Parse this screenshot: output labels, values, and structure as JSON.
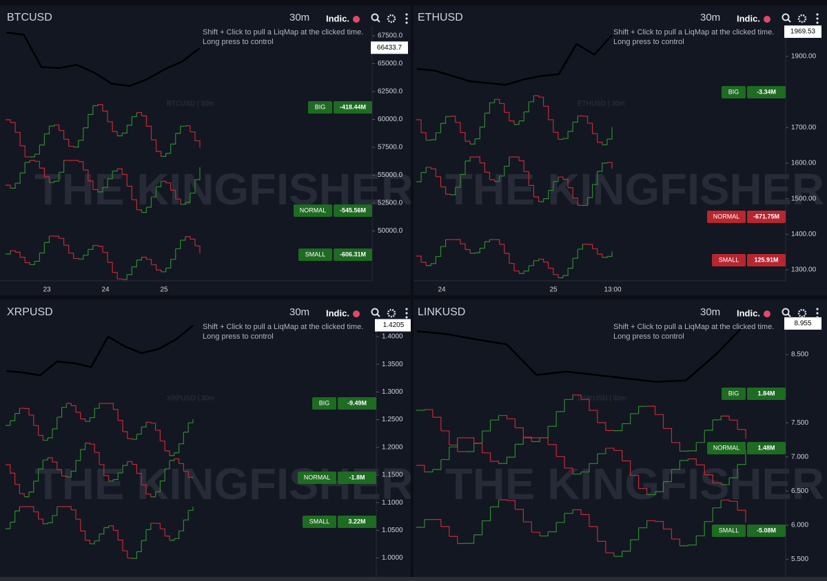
{
  "panels": [
    {
      "symbol": "BTCUSD",
      "timeframe": "30m",
      "indicator": "Indic.",
      "hint": [
        "Shift + Click to pull a LiqMap at the clicked time.",
        "Long press to control"
      ],
      "watermark": "THE KINGFISHER",
      "series_label": "BTCUSD | 30m",
      "price": {
        "values": [
          67800,
          67600,
          64700,
          64600,
          64900,
          64200,
          63200,
          63000,
          63600,
          64500,
          65200,
          66400
        ],
        "color": "#000000"
      },
      "price_label": "66433.7",
      "price_value": 66433.7,
      "ylim": [
        45525,
        68364
      ],
      "yticks": [
        {
          "value": 67500,
          "label": "67500.0"
        },
        {
          "value": 65000,
          "label": "65000.0"
        },
        {
          "value": 62500,
          "label": "62500.0"
        },
        {
          "value": 60000,
          "label": "60000.0"
        },
        {
          "value": 57500,
          "label": "57500.0"
        },
        {
          "value": 55000,
          "label": "55000.0"
        },
        {
          "value": 52500,
          "label": "52500.0"
        },
        {
          "value": 50000,
          "label": "50000.0"
        }
      ],
      "x_labels": [
        "23",
        "24",
        "25"
      ],
      "levels": [
        {
          "name": "BIG",
          "value": "-418.44M",
          "color": "#1e6b22"
        },
        {
          "name": "NORMAL",
          "value": "-545.56M",
          "color": "#1e6b22"
        },
        {
          "name": "SMALL",
          "value": "-606.31M",
          "color": "#1e6b22"
        }
      ]
    },
    {
      "symbol": "ETHUSD",
      "timeframe": "30m",
      "indicator": "Indic.",
      "hint": [
        "Shift + Click to pull a LiqMap at the clicked time.",
        "Long press to control"
      ],
      "watermark": "THE KINGFISHER",
      "series_label": "ETHUSD | 30m",
      "price": {
        "values": [
          1865,
          1860,
          1845,
          1830,
          1825,
          1820,
          1835,
          1845,
          1850,
          1935,
          1905,
          1960
        ],
        "color": "#000000"
      },
      "price_label": "1969.53",
      "price_value": 1969.53,
      "ylim": [
        1269,
        1985
      ],
      "yticks": [
        {
          "value": 1900,
          "label": "1900.00"
        },
        {
          "value": 1700,
          "label": "1700.00"
        },
        {
          "value": 1600,
          "label": "1600.00"
        },
        {
          "value": 1500,
          "label": "1500.00"
        },
        {
          "value": 1400,
          "label": "1400.00"
        },
        {
          "value": 1300,
          "label": "1300.00"
        }
      ],
      "x_labels": [
        "24",
        "25",
        "13:00"
      ],
      "levels": [
        {
          "name": "BIG",
          "value": "-3.34M",
          "color": "#1e6b22"
        },
        {
          "name": "NORMAL",
          "value": "-671.75M",
          "color": "#b8262f"
        },
        {
          "name": "SMALL",
          "value": "125.91M",
          "color": "#b8262f"
        }
      ]
    },
    {
      "symbol": "XRPUSD",
      "timeframe": "30m",
      "indicator": "Indic.",
      "hint": [
        "Shift + Click to pull a LiqMap at the clicked time.",
        "Long press to control"
      ],
      "watermark": "THE KINGFISHER",
      "series_label": "XRPUSD | 30m",
      "price": {
        "values": [
          1.338,
          1.335,
          1.33,
          1.355,
          1.352,
          1.345,
          1.4,
          1.382,
          1.37,
          1.378,
          1.395,
          1.42
        ],
        "color": "#000000"
      },
      "price_label": "1.4205",
      "price_value": 1.4205,
      "ylim": [
        0.9684,
        1.4286
      ],
      "yticks": [
        {
          "value": 1.4,
          "label": "1.4000"
        },
        {
          "value": 1.35,
          "label": "1.3500"
        },
        {
          "value": 1.3,
          "label": "1.3000"
        },
        {
          "value": 1.25,
          "label": "1.2500"
        },
        {
          "value": 1.2,
          "label": "1.2000"
        },
        {
          "value": 1.15,
          "label": "1.1500"
        },
        {
          "value": 1.1,
          "label": "1.1000"
        },
        {
          "value": 1.05,
          "label": "1.0500"
        },
        {
          "value": 1,
          "label": "1.0000"
        }
      ],
      "x_labels": [],
      "levels": [
        {
          "name": "BIG",
          "value": "-9.49M",
          "color": "#1e6b22"
        },
        {
          "name": "NORMAL",
          "value": "-1.8M",
          "color": "#1e6b22"
        },
        {
          "name": "SMALL",
          "value": "3.22M",
          "color": "#1e6b22"
        }
      ]
    },
    {
      "symbol": "LINKUSD",
      "timeframe": "30m",
      "indicator": "Indic.",
      "hint": [
        "Shift + Click to pull a LiqMap at the clicked time.",
        "Long press to control"
      ],
      "watermark": "THE KINGFISHER",
      "series_label": "LINKUSD | 30m",
      "price": {
        "values": [
          8.84,
          8.8,
          8.72,
          8.65,
          8.2,
          8.25,
          8.2,
          8.15,
          8.1,
          8.12,
          8.5,
          8.95
        ],
        "color": "#000000"
      },
      "price_label": "8.955",
      "price_value": 8.955,
      "ylim": [
        5.264,
        8.994
      ],
      "yticks": [
        {
          "value": 8.5,
          "label": "8.500"
        },
        {
          "value": 7.5,
          "label": "7.500"
        },
        {
          "value": 7,
          "label": "7.000"
        },
        {
          "value": 6.5,
          "label": "6.500"
        },
        {
          "value": 6,
          "label": "6.000"
        },
        {
          "value": 5.5,
          "label": "5.500"
        }
      ],
      "x_labels": [],
      "levels": [
        {
          "name": "BIG",
          "value": "1.84M",
          "color": "#1e6b22"
        },
        {
          "name": "NORMAL",
          "value": "1.48M",
          "color": "#1e6b22"
        },
        {
          "name": "SMALL",
          "value": "-5.08M",
          "color": "#1e6b22"
        }
      ]
    }
  ]
}
